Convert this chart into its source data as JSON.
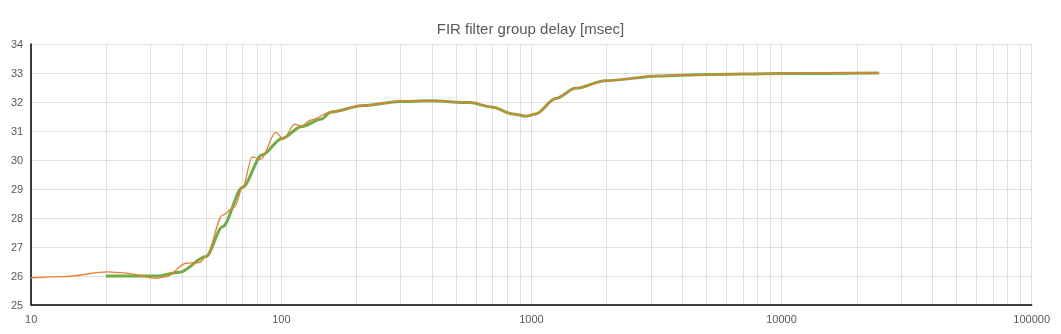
{
  "chart_data": {
    "type": "line",
    "title": "FIR filter group delay [msec]",
    "series": [
      {
        "color": "#ed7d31",
        "x": [
          10,
          13.6,
          20.1,
          23.4,
          31.7,
          34.7,
          41.6,
          47,
          50,
          58.2,
          64.9,
          70,
          76.5,
          82.7,
          95,
          101.9,
          113,
          120,
          132,
          157,
          213,
          298,
          392,
          565,
          700,
          840,
          950,
          1040,
          1250,
          1500,
          1970,
          3220,
          5000,
          10000,
          24300
        ],
        "values": [
          25.94,
          25.98,
          26.14,
          26.11,
          25.92,
          25.98,
          26.44,
          26.46,
          26.67,
          28.1,
          28.37,
          29.06,
          30.11,
          30.02,
          30.95,
          30.72,
          31.24,
          31.17,
          31.38,
          31.65,
          31.88,
          32.02,
          32.04,
          31.98,
          31.82,
          31.59,
          31.51,
          31.59,
          32.12,
          32.47,
          32.73,
          32.9,
          32.95,
          32.98,
          33
        ]
      },
      {
        "color": "#70ad47",
        "x": [
          20.1,
          31.7,
          39.2,
          50,
          58.2,
          70,
          83.7,
          100.5,
          120,
          145,
          157,
          213,
          298,
          392,
          565,
          700,
          840,
          950,
          1040,
          1250,
          1500,
          1970,
          3220,
          5000,
          10000,
          24300
        ],
        "values": [
          26,
          26,
          26.13,
          26.67,
          27.7,
          29.06,
          30.17,
          30.74,
          31.15,
          31.41,
          31.65,
          31.88,
          32.02,
          32.04,
          31.98,
          31.82,
          31.59,
          31.51,
          31.59,
          32.12,
          32.47,
          32.73,
          32.9,
          32.95,
          32.98,
          33
        ]
      }
    ],
    "log": "x",
    "xlim": [
      10,
      100000
    ],
    "xticks": [
      10,
      {
        "value": 20,
        "label": null
      },
      {
        "value": 30,
        "label": null
      },
      {
        "value": 40,
        "label": null
      },
      {
        "value": 50,
        "label": null
      },
      {
        "value": 60,
        "label": null
      },
      {
        "value": 70,
        "label": null
      },
      {
        "value": 80,
        "label": null
      },
      {
        "value": 90,
        "label": null
      },
      100,
      {
        "value": 200,
        "label": null
      },
      {
        "value": 300,
        "label": null
      },
      {
        "value": 400,
        "label": null
      },
      {
        "value": 500,
        "label": null
      },
      {
        "value": 600,
        "label": null
      },
      {
        "value": 700,
        "label": null
      },
      {
        "value": 800,
        "label": null
      },
      {
        "value": 900,
        "label": null
      },
      1000,
      {
        "value": 2000,
        "label": null
      },
      {
        "value": 3000,
        "label": null
      },
      {
        "value": 4000,
        "label": null
      },
      {
        "value": 5000,
        "label": null
      },
      {
        "value": 6000,
        "label": null
      },
      {
        "value": 7000,
        "label": null
      },
      {
        "value": 8000,
        "label": null
      },
      {
        "value": 9000,
        "label": null
      },
      10000,
      {
        "value": 20000,
        "label": null
      },
      {
        "value": 30000,
        "label": null
      },
      {
        "value": 40000,
        "label": null
      },
      {
        "value": 50000,
        "label": null
      },
      {
        "value": 60000,
        "label": null
      },
      {
        "value": 70000,
        "label": null
      },
      {
        "value": 80000,
        "label": null
      },
      {
        "value": 90000,
        "label": null
      },
      100000
    ],
    "ylim": [
      25,
      34
    ],
    "yticks": [
      25,
      26,
      27,
      28,
      29,
      30,
      31,
      32,
      33,
      34
    ],
    "grid": true,
    "marker": "none",
    "line_style": "solid"
  }
}
